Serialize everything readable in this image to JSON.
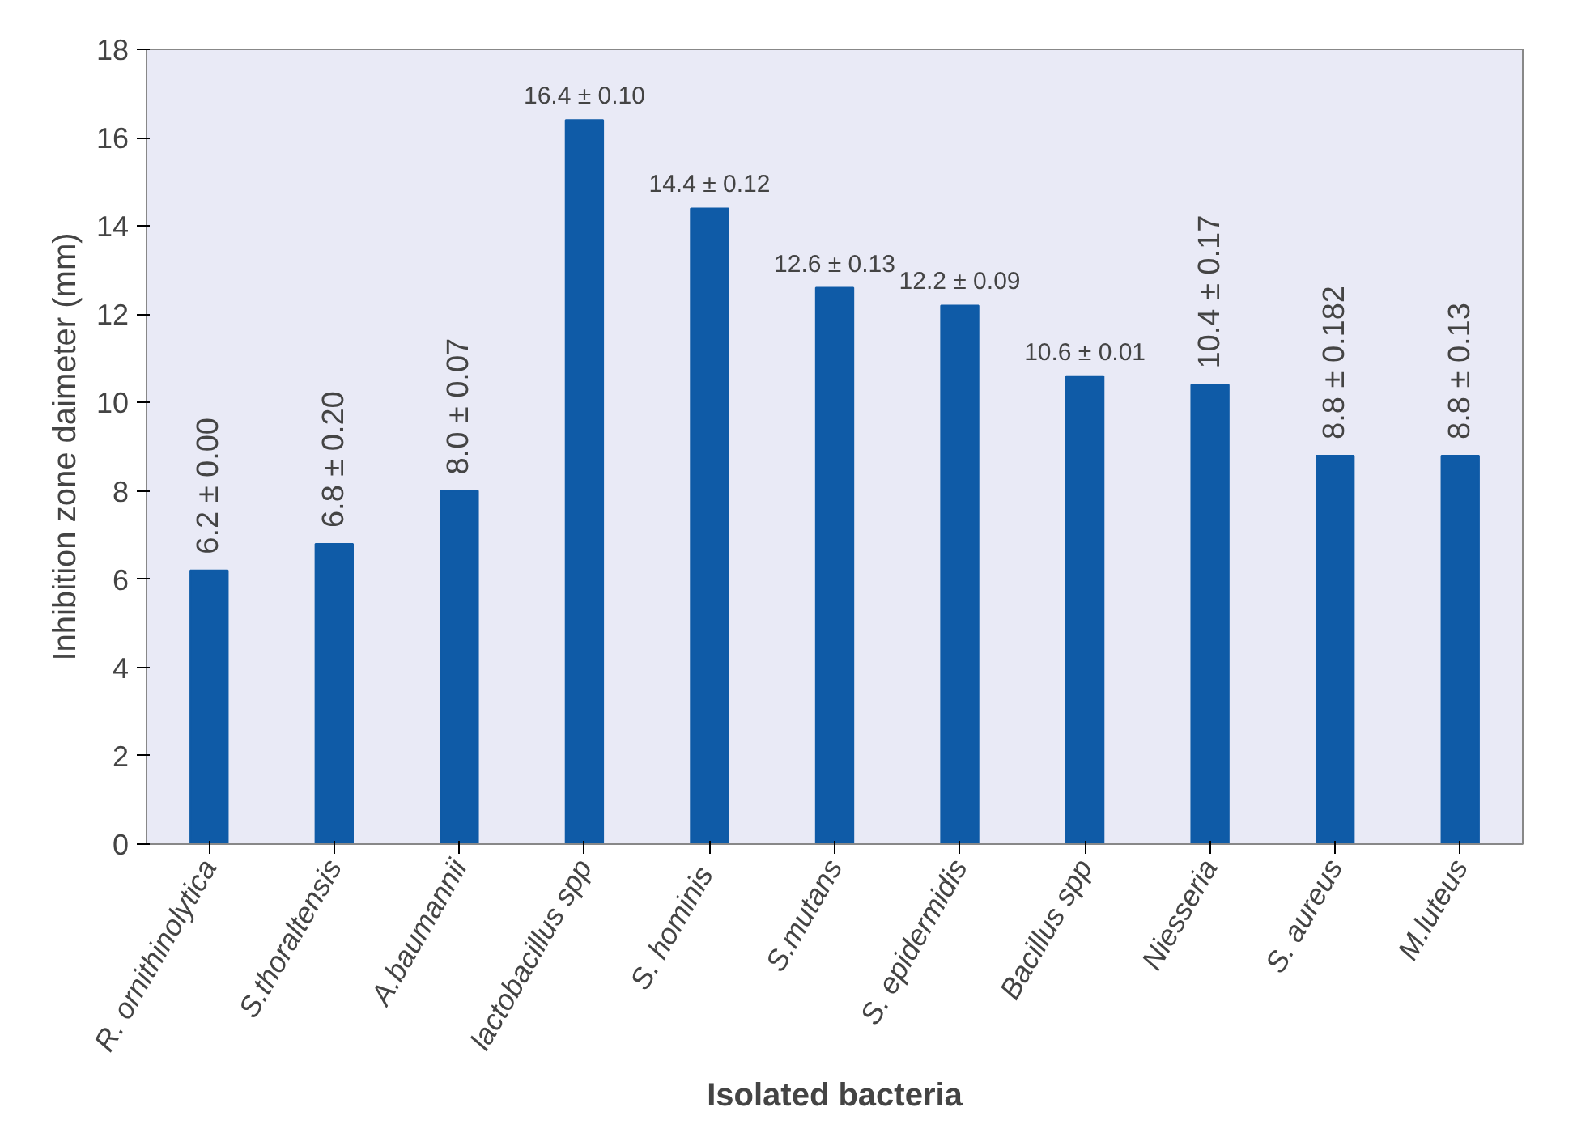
{
  "chart_data": {
    "type": "bar",
    "xlabel": "Isolated bacteria",
    "ylabel": "Inhibition zone daimeter (mm)",
    "categories": [
      "R. ornithinolytica",
      "S.thoraltensis",
      "A.baumannii",
      "lactobacillus spp",
      "S.  hominis",
      "S.mutans",
      "S. epidermidis",
      "Bacillus spp",
      "Niesseria",
      "S. aureus",
      "M.luteus"
    ],
    "values": [
      6.2,
      6.8,
      8.0,
      16.4,
      14.4,
      12.6,
      12.2,
      10.6,
      10.4,
      8.8,
      8.8
    ],
    "value_labels": [
      "6.2 ± 0.00",
      "6.8 ± 0.20",
      "8.0 ± 0.07",
      "16.4 ± 0.10",
      "14.4 ± 0.12",
      "12.6 ± 0.13",
      "12.2 ± 0.09",
      "10.6 ± 0.01",
      "10.4 ± 0.17",
      "8.8 ± 0.182",
      "8.8 ± 0.13"
    ],
    "color": "#0f5ba7",
    "ylim": [
      0,
      18
    ],
    "yticks": [
      0,
      2,
      4,
      6,
      8,
      10,
      12,
      14,
      16,
      18
    ],
    "grid": false
  }
}
